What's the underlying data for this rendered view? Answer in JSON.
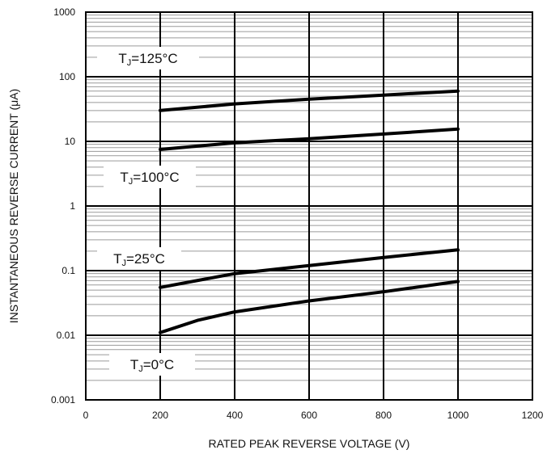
{
  "chart_data": {
    "type": "line",
    "title": "",
    "xlabel": "RATED PEAK REVERSE VOLTAGE (V)",
    "ylabel": "INSTANTANEOUS REVERSE CURRENT (μA)",
    "x_scale": "linear",
    "y_scale": "log",
    "xlim": [
      0,
      1200
    ],
    "ylim": [
      0.001,
      1000
    ],
    "x_ticks": [
      0,
      200,
      400,
      600,
      800,
      1000,
      1200
    ],
    "y_ticks": [
      "0.001",
      "0.01",
      "0.1",
      "1",
      "10",
      "100",
      "1000"
    ],
    "grid": true,
    "legend": "none",
    "series": [
      {
        "name": "TJ=125°C",
        "x": [
          200,
          400,
          600,
          800,
          1000
        ],
        "y": [
          30,
          38,
          45,
          52,
          60
        ]
      },
      {
        "name": "TJ=100°C",
        "x": [
          200,
          400,
          600,
          800,
          1000
        ],
        "y": [
          7.5,
          9.5,
          11,
          13,
          15.5
        ]
      },
      {
        "name": "TJ=25°C",
        "x": [
          200,
          400,
          600,
          800,
          1000
        ],
        "y": [
          0.055,
          0.09,
          0.12,
          0.16,
          0.21
        ]
      },
      {
        "name": "TJ=0°C",
        "x": [
          200,
          300,
          400,
          600,
          800,
          1000
        ],
        "y": [
          0.011,
          0.017,
          0.023,
          0.034,
          0.047,
          0.068
        ]
      }
    ],
    "curve_labels": [
      {
        "prefix": "T",
        "sub": "J",
        "suffix": "=125°C"
      },
      {
        "prefix": "T",
        "sub": "J",
        "suffix": "=100°C"
      },
      {
        "prefix": "T",
        "sub": "J",
        "suffix": "=25°C"
      },
      {
        "prefix": "T",
        "sub": "J",
        "suffix": "=0°C"
      }
    ]
  }
}
